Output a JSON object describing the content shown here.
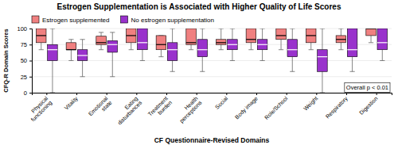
{
  "chart_data": {
    "type": "box",
    "title": "Estrogen Supplementation is Associated with Higher Quality of Life Scores",
    "xlabel": "CF Questionnaire-Revised Domains",
    "ylabel": "CFQ-R Domain Scores",
    "annotation": "Overall p < 0.01",
    "categories": [
      "Physical\nfunctioning",
      "Vitality",
      "Emotional\nstate",
      "Eating\ndisturbances",
      "Treatment\nburden",
      "Health\nperceptions",
      "Social",
      "Body image",
      "Role/School",
      "Weight",
      "Respiratory",
      "Digestion"
    ],
    "series": [
      {
        "name": "Estrogen supplemented",
        "color": "#f08080",
        "values": [
          {
            "min": 67,
            "q1": 78,
            "median": 89,
            "q3": 100,
            "max": 100
          },
          {
            "min": 50,
            "q1": 67,
            "median": 67,
            "q3": 78,
            "max": 83
          },
          {
            "min": 67,
            "q1": 75,
            "median": 78,
            "q3": 88,
            "max": 94
          },
          {
            "min": 67,
            "q1": 78,
            "median": 89,
            "q3": 100,
            "max": 100
          },
          {
            "min": 56,
            "q1": 67,
            "median": 75,
            "q3": 89,
            "max": 89
          },
          {
            "min": 67,
            "q1": 75,
            "median": 78,
            "q3": 100,
            "max": 100
          },
          {
            "min": 67,
            "q1": 75,
            "median": 78,
            "q3": 83,
            "max": 100
          },
          {
            "min": 67,
            "q1": 78,
            "median": 83,
            "q3": 100,
            "max": 100
          },
          {
            "min": 67,
            "q1": 83,
            "median": 89,
            "q3": 100,
            "max": 100
          },
          {
            "min": 67,
            "q1": 78,
            "median": 89,
            "q3": 100,
            "max": 100
          },
          {
            "min": 67,
            "q1": 78,
            "median": 83,
            "q3": 89,
            "max": 100
          },
          {
            "min": 78,
            "q1": 89,
            "median": 100,
            "q3": 100,
            "max": 100
          }
        ]
      },
      {
        "name": "No estrogen supplementation",
        "color": "#9932cc",
        "values": [
          {
            "min": 0,
            "q1": 50,
            "median": 67,
            "q3": 75,
            "max": 100
          },
          {
            "min": 25,
            "q1": 50,
            "median": 58,
            "q3": 67,
            "max": 83
          },
          {
            "min": 25,
            "q1": 63,
            "median": 75,
            "q3": 81,
            "max": 94
          },
          {
            "min": 50,
            "q1": 67,
            "median": 78,
            "q3": 100,
            "max": 100
          },
          {
            "min": 33,
            "q1": 50,
            "median": 67,
            "q3": 78,
            "max": 100
          },
          {
            "min": 33,
            "q1": 56,
            "median": 67,
            "q3": 83,
            "max": 100
          },
          {
            "min": 50,
            "q1": 67,
            "median": 75,
            "q3": 83,
            "max": 100
          },
          {
            "min": 50,
            "q1": 67,
            "median": 75,
            "q3": 83,
            "max": 100
          },
          {
            "min": 33,
            "q1": 56,
            "median": 67,
            "q3": 83,
            "max": 100
          },
          {
            "min": 0,
            "q1": 33,
            "median": 56,
            "q3": 67,
            "max": 100
          },
          {
            "min": 33,
            "q1": 56,
            "median": 67,
            "q3": 100,
            "max": 100
          },
          {
            "min": 50,
            "q1": 67,
            "median": 78,
            "q3": 100,
            "max": 100
          }
        ]
      }
    ],
    "ylim": [
      0,
      100
    ],
    "yticks": [
      0,
      25,
      50,
      75,
      100
    ],
    "grid": true,
    "legend": "top"
  }
}
